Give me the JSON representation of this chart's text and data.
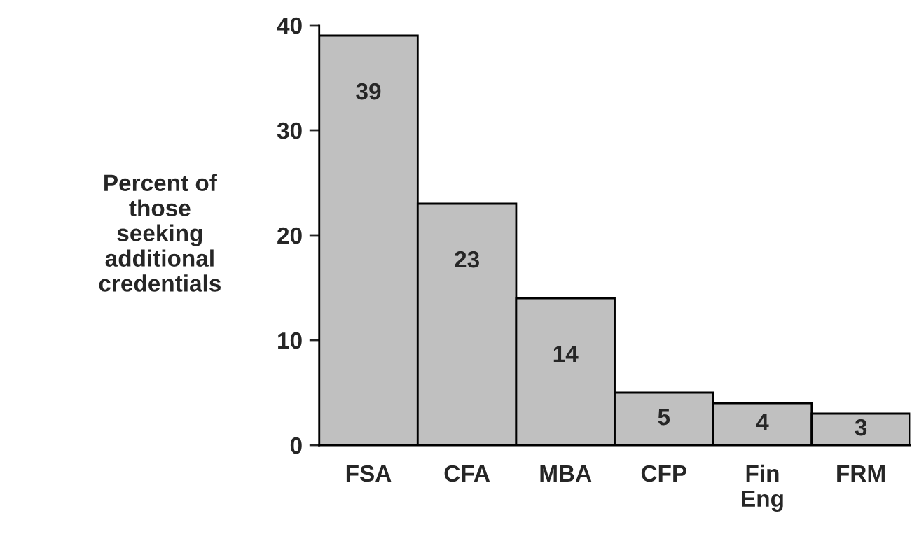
{
  "chart_data": {
    "type": "bar",
    "ylabel": "Percent of\nthose\nseeking\nadditional\ncredentials",
    "categories": [
      "FSA",
      "CFA",
      "MBA",
      "CFP",
      "Fin\nEng",
      "FRM"
    ],
    "values": [
      39,
      23,
      14,
      5,
      4,
      3
    ],
    "color": "#c0c0c0",
    "ylim": [
      0,
      40
    ],
    "yticks": [
      0,
      10,
      20,
      30,
      40
    ],
    "grid": false,
    "data_labels": true
  }
}
